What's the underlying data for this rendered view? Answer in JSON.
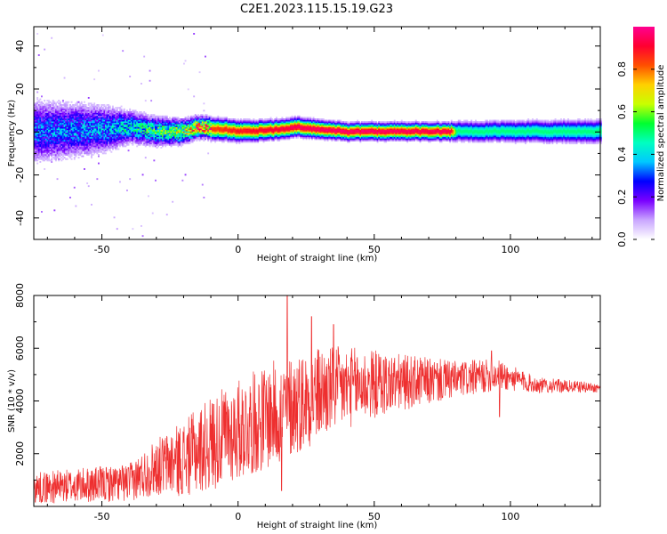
{
  "title": "C2E1.2023.115.15.19.G23",
  "chart_data": [
    {
      "type": "heatmap",
      "xlabel": "Height of straight line (km)",
      "ylabel": "Frequency (Hz)",
      "xlim": [
        -75,
        133
      ],
      "ylim": [
        -50,
        49
      ],
      "x_ticks": [
        -50,
        0,
        50,
        100
      ],
      "y_ticks": [
        -40,
        -20,
        0,
        20,
        40
      ],
      "colorbar": {
        "label": "Normalized spectral amplitude",
        "range": [
          0,
          1
        ],
        "ticks": [
          "0.0",
          "0.2",
          "0.4",
          "0.6",
          "0.8"
        ],
        "colors": [
          "#ffffff",
          "#c9a6ff",
          "#7a00ff",
          "#0000ff",
          "#00c8ff",
          "#00ffc0",
          "#00ff30",
          "#c8ff00",
          "#ffd000",
          "#ff5000",
          "#ff0030",
          "#ff0090"
        ]
      },
      "profile": [
        {
          "x": -75,
          "center": 0,
          "spread": 8,
          "peak": 0.3
        },
        {
          "x": -50,
          "center": 1,
          "spread": 6,
          "peak": 0.34
        },
        {
          "x": -40,
          "center": 2,
          "spread": 4,
          "peak": 0.42
        },
        {
          "x": -30,
          "center": 0,
          "spread": 3.5,
          "peak": 0.52
        },
        {
          "x": -20,
          "center": 0,
          "spread": 3,
          "peak": 0.6
        },
        {
          "x": -15,
          "center": 2,
          "spread": 2.6,
          "peak": 0.82
        },
        {
          "x": 0,
          "center": 0,
          "spread": 2.4,
          "peak": 0.9
        },
        {
          "x": 15,
          "center": 1,
          "spread": 2.2,
          "peak": 0.94
        },
        {
          "x": 20,
          "center": 2,
          "spread": 2.2,
          "peak": 0.96
        },
        {
          "x": 40,
          "center": 0,
          "spread": 2,
          "peak": 0.98
        },
        {
          "x": 78,
          "center": 0,
          "spread": 2,
          "peak": 0.96
        },
        {
          "x": 80,
          "center": 0,
          "spread": 2.4,
          "peak": 0.5
        },
        {
          "x": 133,
          "center": 0,
          "spread": 2.8,
          "peak": 0.5
        }
      ]
    },
    {
      "type": "line",
      "xlabel": "Height of straight line (km)",
      "ylabel": "SNR (10 * v/v)",
      "xlim": [
        -75,
        133
      ],
      "ylim": [
        0,
        8000
      ],
      "x_ticks": [
        -50,
        0,
        50,
        100
      ],
      "y_ticks": [
        2000,
        4000,
        6000,
        8000
      ],
      "color": "#ee2f2f",
      "envelope": [
        {
          "x": -75,
          "mean": 700,
          "noise": 500
        },
        {
          "x": -40,
          "mean": 900,
          "noise": 600
        },
        {
          "x": -30,
          "mean": 1500,
          "noise": 900
        },
        {
          "x": -20,
          "mean": 1800,
          "noise": 1200
        },
        {
          "x": -10,
          "mean": 2400,
          "noise": 1500
        },
        {
          "x": 0,
          "mean": 2900,
          "noise": 1600
        },
        {
          "x": 15,
          "mean": 3600,
          "noise": 1700
        },
        {
          "x": 30,
          "mean": 4300,
          "noise": 1500
        },
        {
          "x": 45,
          "mean": 4600,
          "noise": 1200
        },
        {
          "x": 60,
          "mean": 4700,
          "noise": 900
        },
        {
          "x": 80,
          "mean": 4800,
          "noise": 600
        },
        {
          "x": 95,
          "mean": 5000,
          "noise": 500
        },
        {
          "x": 110,
          "mean": 4600,
          "noise": 250
        },
        {
          "x": 133,
          "mean": 4500,
          "noise": 150
        }
      ],
      "spikes": [
        {
          "x": 18,
          "y": 8000
        },
        {
          "x": 27,
          "y": 7200
        },
        {
          "x": 35,
          "y": 6900
        },
        {
          "x": 16,
          "y": 600
        },
        {
          "x": 93,
          "y": 5900
        },
        {
          "x": 96,
          "y": 3400
        }
      ]
    }
  ]
}
